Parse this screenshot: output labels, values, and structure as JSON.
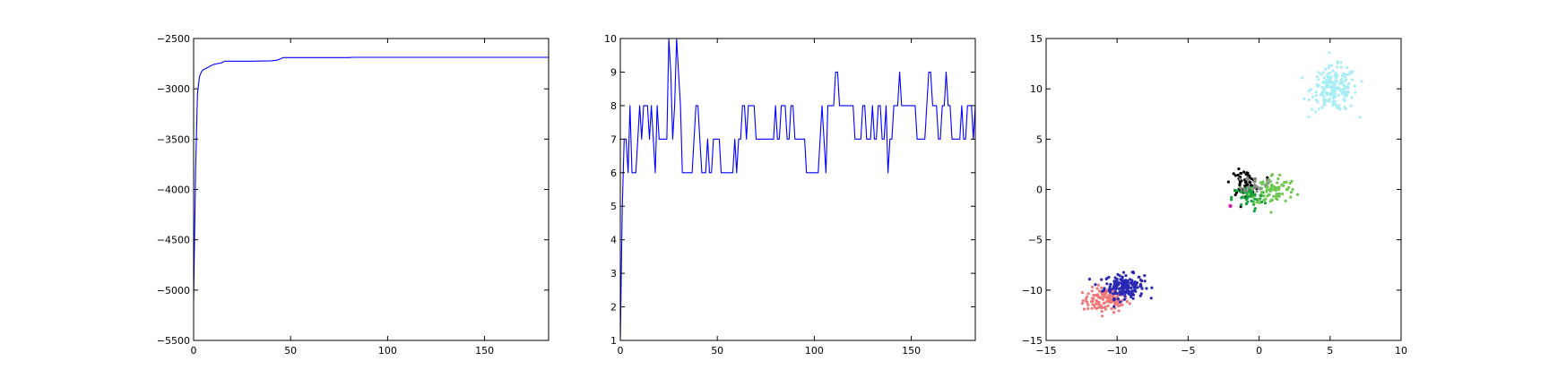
{
  "colors": {
    "line": "#0000ff",
    "frame": "#000000",
    "cluster_palette": [
      "#f07878",
      "#2a28b4",
      "#000000",
      "#14a03c",
      "#6ec850",
      "#aaeef5",
      "#d21ea0",
      "#8a8a8a"
    ]
  },
  "chart_data": [
    {
      "id": "loglik",
      "type": "line",
      "xlim": [
        0,
        183
      ],
      "ylim": [
        -5500,
        -2500
      ],
      "xticks": [
        0,
        50,
        100,
        150
      ],
      "yticks": [
        -5500,
        -5000,
        -4500,
        -4000,
        -3500,
        -3000,
        -2500
      ],
      "xtick_labels": [
        "0",
        "50",
        "100",
        "150"
      ],
      "ytick_labels": [
        "−5500",
        "−5000",
        "−4500",
        "−4000",
        "−3500",
        "−3000",
        "−2500"
      ],
      "grid": false,
      "series": [
        {
          "x": [
            0,
            1,
            2,
            3,
            4,
            5,
            6,
            8,
            10,
            12,
            14,
            15,
            16,
            20,
            30,
            40,
            43,
            45,
            46,
            60,
            80,
            82,
            100,
            120,
            150,
            183
          ],
          "y": [
            -5100,
            -3800,
            -3050,
            -2880,
            -2830,
            -2810,
            -2800,
            -2780,
            -2760,
            -2750,
            -2745,
            -2735,
            -2725,
            -2725,
            -2725,
            -2722,
            -2715,
            -2700,
            -2690,
            -2690,
            -2690,
            -2687,
            -2687,
            -2687,
            -2687,
            -2687
          ]
        }
      ]
    },
    {
      "id": "num_clusters",
      "type": "line",
      "xlim": [
        0,
        183
      ],
      "ylim": [
        1,
        10
      ],
      "xticks": [
        0,
        50,
        100,
        150
      ],
      "yticks": [
        1,
        2,
        3,
        4,
        5,
        6,
        7,
        8,
        9,
        10
      ],
      "xtick_labels": [
        "0",
        "50",
        "100",
        "150"
      ],
      "ytick_labels": [
        "1",
        "2",
        "3",
        "4",
        "5",
        "6",
        "7",
        "8",
        "9",
        "10"
      ],
      "grid": false,
      "series": [
        {
          "x": [
            0,
            1,
            2,
            3,
            4,
            5,
            6,
            7,
            8,
            9,
            10,
            11,
            12,
            13,
            14,
            15,
            16,
            17,
            18,
            19,
            20,
            21,
            22,
            23,
            24,
            25,
            26,
            27,
            28,
            29,
            30,
            31,
            32,
            33,
            34,
            35,
            36,
            37,
            38,
            39,
            40,
            41,
            42,
            43,
            44,
            45,
            46,
            47,
            48,
            49,
            50,
            51,
            52,
            53,
            54,
            55,
            56,
            57,
            58,
            59,
            60,
            61,
            62,
            63,
            64,
            65,
            66,
            67,
            68,
            69,
            70,
            71,
            72,
            73,
            74,
            75,
            76,
            77,
            78,
            79,
            80,
            81,
            82,
            83,
            84,
            85,
            86,
            87,
            88,
            89,
            90,
            91,
            92,
            93,
            94,
            95,
            96,
            97,
            98,
            99,
            100,
            101,
            102,
            103,
            104,
            105,
            106,
            107,
            108,
            109,
            110,
            111,
            112,
            113,
            114,
            115,
            116,
            117,
            118,
            119,
            120,
            121,
            122,
            123,
            124,
            125,
            126,
            127,
            128,
            129,
            130,
            131,
            132,
            133,
            134,
            135,
            136,
            137,
            138,
            139,
            140,
            141,
            142,
            143,
            144,
            145,
            146,
            147,
            148,
            149,
            150,
            151,
            152,
            153,
            154,
            155,
            156,
            157,
            158,
            159,
            160,
            161,
            162,
            163,
            164,
            165,
            166,
            167,
            168,
            169,
            170,
            171,
            172,
            173,
            174,
            175,
            176,
            177,
            178,
            179,
            180,
            181,
            182,
            183
          ],
          "y": [
            1,
            5,
            7,
            7,
            6,
            8,
            6,
            6,
            6,
            7,
            8,
            7,
            8,
            8,
            8,
            7,
            8,
            7,
            6,
            8,
            7,
            7,
            7,
            7,
            7,
            10,
            9,
            7,
            8,
            10,
            9,
            8,
            6,
            6,
            6,
            6,
            6,
            6,
            7,
            8,
            8,
            7,
            6,
            6,
            6,
            7,
            6,
            6,
            7,
            7,
            7,
            7,
            6,
            6,
            6,
            6,
            6,
            6,
            6,
            7,
            6,
            7,
            7,
            8,
            8,
            7,
            8,
            8,
            8,
            8,
            7,
            7,
            7,
            7,
            7,
            7,
            7,
            7,
            7,
            7,
            8,
            7,
            7,
            8,
            8,
            8,
            7,
            7,
            8,
            8,
            7,
            7,
            7,
            7,
            7,
            7,
            6,
            6,
            6,
            6,
            6,
            6,
            6,
            7,
            8,
            7,
            6,
            8,
            8,
            8,
            8,
            9,
            9,
            8,
            8,
            8,
            8,
            8,
            8,
            8,
            8,
            7,
            7,
            7,
            7,
            8,
            8,
            7,
            7,
            7,
            8,
            7,
            7,
            8,
            8,
            7,
            7,
            8,
            6,
            7,
            7,
            8,
            8,
            8,
            9,
            8,
            8,
            8,
            8,
            8,
            8,
            8,
            8,
            7,
            7,
            7,
            7,
            7,
            8,
            9,
            9,
            8,
            8,
            8,
            7,
            7,
            8,
            8,
            9,
            8,
            8,
            7,
            7,
            7,
            7,
            7,
            8,
            7,
            7,
            8,
            8,
            8,
            7,
            8
          ]
        }
      ]
    },
    {
      "id": "clusters",
      "type": "scatter",
      "xlim": [
        -15,
        10
      ],
      "ylim": [
        -15,
        15
      ],
      "xticks": [
        -15,
        -10,
        -5,
        0,
        5,
        10
      ],
      "yticks": [
        -15,
        -10,
        -5,
        0,
        5,
        10,
        15
      ],
      "xtick_labels": [
        "−15",
        "−10",
        "−5",
        "0",
        "5",
        "10"
      ],
      "ytick_labels": [
        "−15",
        "−10",
        "−5",
        "0",
        "5",
        "10",
        "15"
      ],
      "grid": false,
      "groups": [
        {
          "color": "#f07878",
          "center": [
            -10.8,
            -11.0
          ],
          "spread": [
            0.8,
            0.6
          ],
          "count": 120
        },
        {
          "color": "#2a28b4",
          "center": [
            -9.5,
            -9.6
          ],
          "spread": [
            0.7,
            0.6
          ],
          "count": 180
        },
        {
          "color": "#aaeef5",
          "center": [
            5.3,
            10.0
          ],
          "spread": [
            0.8,
            1.1
          ],
          "count": 200
        },
        {
          "color": "#000000",
          "center": [
            -1.0,
            0.7
          ],
          "spread": [
            0.5,
            0.6
          ],
          "count": 60
        },
        {
          "color": "#14a03c",
          "center": [
            -0.7,
            -0.8
          ],
          "spread": [
            0.6,
            0.6
          ],
          "count": 55
        },
        {
          "color": "#6ec850",
          "center": [
            1.0,
            0.0
          ],
          "spread": [
            0.8,
            0.8
          ],
          "count": 90
        },
        {
          "color": "#8a8a8a",
          "center": [
            -0.3,
            0.6
          ],
          "spread": [
            0.4,
            0.4
          ],
          "count": 25
        },
        {
          "color": "#d21ea0",
          "center": [
            -2.0,
            -1.7
          ],
          "spread": [
            0.05,
            0.05
          ],
          "count": 1
        }
      ]
    }
  ]
}
